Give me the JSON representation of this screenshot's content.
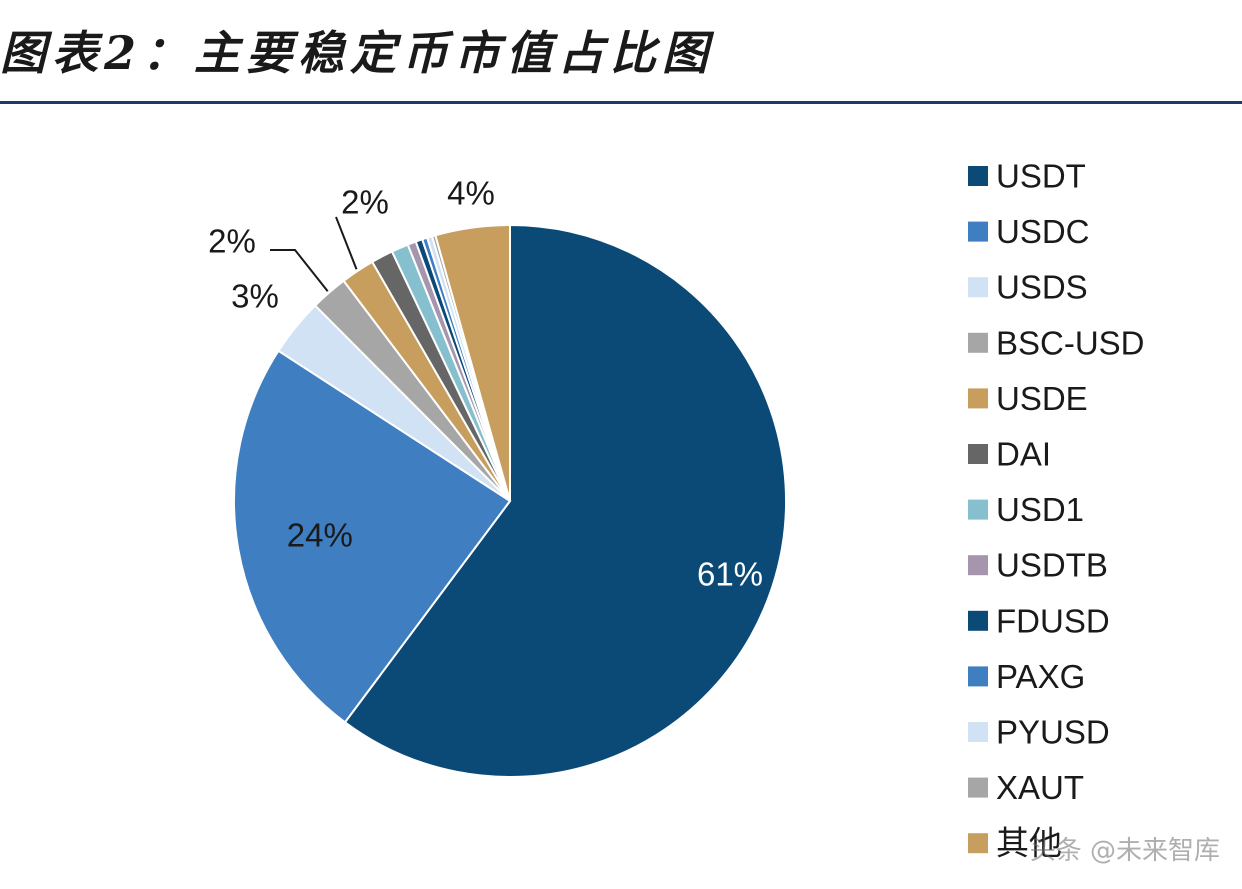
{
  "header": {
    "title": "图表2：主要稳定币市值占比图"
  },
  "watermark": "头条 @未来智库",
  "chart_data": {
    "type": "pie",
    "title": "",
    "legend_position": "right",
    "series": [
      {
        "name": "USDT",
        "value": 60.8,
        "color": "#0b4a77",
        "label": "61%",
        "label_color": "#ffffff"
      },
      {
        "name": "USDC",
        "value": 24.2,
        "color": "#3f7fc1",
        "label": "24%",
        "label_color": "#1a1a1a"
      },
      {
        "name": "USDS",
        "value": 3.4,
        "color": "#d0e2f3",
        "label": "3%",
        "label_color": "#1a1a1a"
      },
      {
        "name": "BSC-USD",
        "value": 2.2,
        "color": "#a6a6a6",
        "label": "2%",
        "label_color": "#1a1a1a"
      },
      {
        "name": "USDE",
        "value": 2.0,
        "color": "#c79e5d",
        "label": "2%",
        "label_color": "#1a1a1a"
      },
      {
        "name": "DAI",
        "value": 1.3,
        "color": "#666666",
        "label": "",
        "label_color": "#1a1a1a"
      },
      {
        "name": "USD1",
        "value": 1.0,
        "color": "#86c0cf",
        "label": "",
        "label_color": "#1a1a1a"
      },
      {
        "name": "USDTB",
        "value": 0.5,
        "color": "#a596ad",
        "label": "",
        "label_color": "#1a1a1a"
      },
      {
        "name": "FDUSD",
        "value": 0.4,
        "color": "#0b4a77",
        "label": "",
        "label_color": "#1a1a1a"
      },
      {
        "name": "PAXG",
        "value": 0.3,
        "color": "#3f7fc1",
        "label": "",
        "label_color": "#1a1a1a"
      },
      {
        "name": "PYUSD",
        "value": 0.3,
        "color": "#d0e2f3",
        "label": "",
        "label_color": "#1a1a1a"
      },
      {
        "name": "XAUT",
        "value": 0.2,
        "color": "#a6a6a6",
        "label": "",
        "label_color": "#1a1a1a"
      },
      {
        "name": "其他",
        "value": 4.4,
        "color": "#c79e5d",
        "label": "4%",
        "label_color": "#1a1a1a"
      }
    ]
  }
}
